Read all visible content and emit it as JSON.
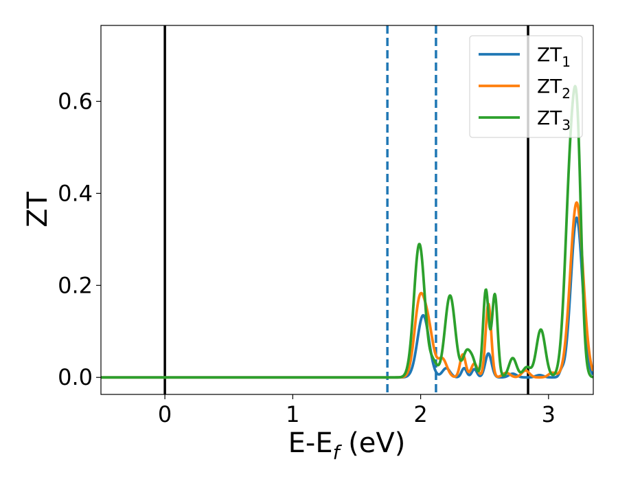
{
  "chart_data": {
    "type": "line",
    "xlabel": "E-E",
    "xlabel_sub": "f",
    "xlabel_unit": " (eV)",
    "ylabel": "ZT",
    "xlim": [
      -0.5,
      3.35
    ],
    "ylim": [
      -0.037,
      0.765
    ],
    "xticks": [
      0,
      1,
      2,
      3
    ],
    "xtick_labels": [
      "0",
      "1",
      "2",
      "3"
    ],
    "yticks": [
      0.0,
      0.2,
      0.4,
      0.6
    ],
    "ytick_labels": [
      "0.0",
      "0.2",
      "0.4",
      "0.6"
    ],
    "grid": false,
    "legend_position": "top-right",
    "vlines": [
      {
        "x": 0.0,
        "style": "solid",
        "color": "#000000"
      },
      {
        "x": 2.84,
        "style": "solid",
        "color": "#000000"
      },
      {
        "x": 1.74,
        "style": "dashed",
        "color": "#1f77b4"
      },
      {
        "x": 2.12,
        "style": "dashed",
        "color": "#1f77b4"
      }
    ],
    "series": [
      {
        "name": "ZT",
        "name_sub": "1",
        "color": "#1f77b4",
        "peaks": [
          {
            "center": 2.02,
            "height": 0.135,
            "width": 0.045
          },
          {
            "center": 2.2,
            "height": 0.02,
            "width": 0.03
          },
          {
            "center": 2.34,
            "height": 0.02,
            "width": 0.02
          },
          {
            "center": 2.42,
            "height": 0.018,
            "width": 0.02
          },
          {
            "center": 2.53,
            "height": 0.052,
            "width": 0.025
          },
          {
            "center": 2.72,
            "height": 0.008,
            "width": 0.03
          },
          {
            "center": 2.93,
            "height": 0.005,
            "width": 0.03
          },
          {
            "center": 3.1,
            "height": 0.01,
            "width": 0.015
          },
          {
            "center": 3.22,
            "height": 0.347,
            "width": 0.045
          }
        ]
      },
      {
        "name": "ZT",
        "name_sub": "2",
        "color": "#ff7f0e",
        "peaks": [
          {
            "center": 1.99,
            "height": 0.155,
            "width": 0.04
          },
          {
            "center": 2.06,
            "height": 0.1,
            "width": 0.04
          },
          {
            "center": 2.17,
            "height": 0.04,
            "width": 0.035
          },
          {
            "center": 2.33,
            "height": 0.05,
            "width": 0.022
          },
          {
            "center": 2.42,
            "height": 0.03,
            "width": 0.025
          },
          {
            "center": 2.53,
            "height": 0.16,
            "width": 0.022
          },
          {
            "center": 2.67,
            "height": 0.01,
            "width": 0.03
          },
          {
            "center": 2.82,
            "height": 0.015,
            "width": 0.03
          },
          {
            "center": 3.03,
            "height": 0.01,
            "width": 0.03
          },
          {
            "center": 3.22,
            "height": 0.38,
            "width": 0.05
          }
        ]
      },
      {
        "name": "ZT",
        "name_sub": "3",
        "color": "#2ca02c",
        "peaks": [
          {
            "center": 1.99,
            "height": 0.29,
            "width": 0.042
          },
          {
            "center": 2.1,
            "height": 0.03,
            "width": 0.03
          },
          {
            "center": 2.23,
            "height": 0.178,
            "width": 0.04
          },
          {
            "center": 2.36,
            "height": 0.055,
            "width": 0.03
          },
          {
            "center": 2.41,
            "height": 0.03,
            "width": 0.025
          },
          {
            "center": 2.51,
            "height": 0.19,
            "width": 0.022
          },
          {
            "center": 2.58,
            "height": 0.18,
            "width": 0.022
          },
          {
            "center": 2.72,
            "height": 0.042,
            "width": 0.03
          },
          {
            "center": 2.83,
            "height": 0.022,
            "width": 0.03
          },
          {
            "center": 2.94,
            "height": 0.104,
            "width": 0.035
          },
          {
            "center": 3.18,
            "height": 0.49,
            "width": 0.045
          },
          {
            "center": 3.23,
            "height": 0.3,
            "width": 0.03
          }
        ]
      }
    ]
  }
}
